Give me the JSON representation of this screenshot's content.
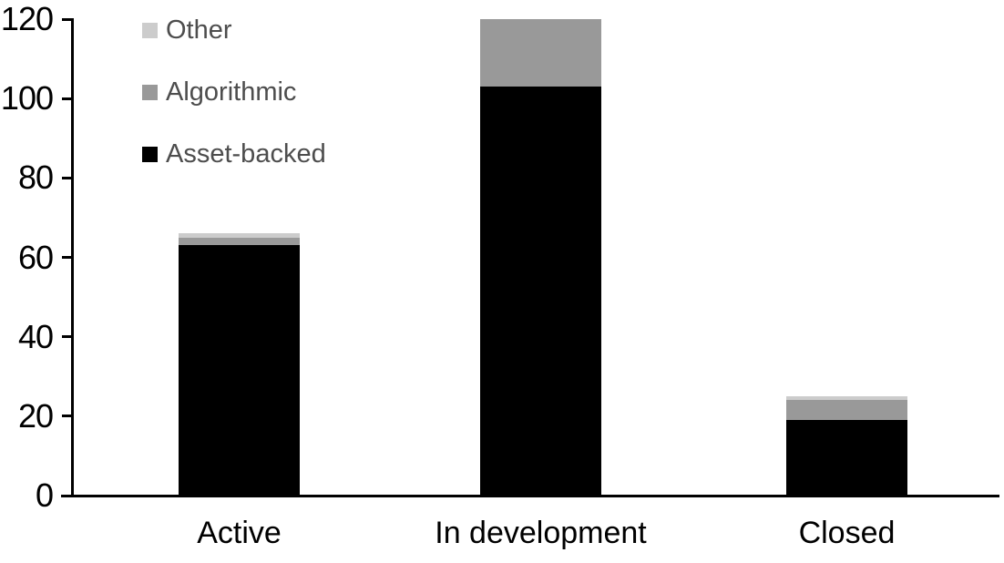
{
  "chart_data": {
    "type": "bar",
    "stacked": true,
    "title": "",
    "xlabel": "",
    "ylabel": "",
    "categories": [
      "Active",
      "In development",
      "Closed"
    ],
    "series": [
      {
        "name": "Asset-backed",
        "color": "#000000",
        "values": [
          63,
          103,
          19
        ]
      },
      {
        "name": "Algorithmic",
        "color": "#999999",
        "values": [
          2,
          17,
          5
        ]
      },
      {
        "name": "Other",
        "color": "#cccccc",
        "values": [
          1,
          0,
          1
        ]
      }
    ],
    "totals": [
      66,
      120,
      25
    ],
    "legend_order": [
      "Other",
      "Algorithmic",
      "Asset-backed"
    ],
    "legend_position": "top-left",
    "y_ticks": [
      0,
      20,
      40,
      60,
      80,
      100,
      120
    ],
    "ylim": [
      0,
      120
    ],
    "grid": false
  },
  "colors": {
    "axis": "#000000",
    "tick_label": "#000000",
    "category_label": "#000000",
    "legend_text": "#4d4d4d",
    "background": "#ffffff"
  }
}
